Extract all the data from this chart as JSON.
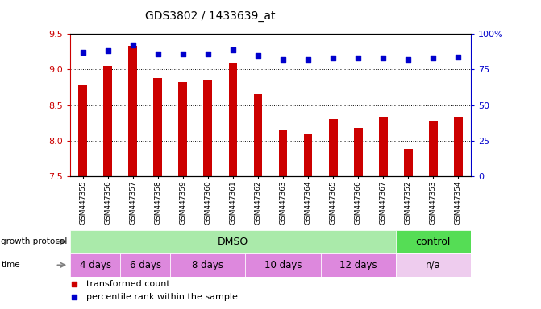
{
  "title": "GDS3802 / 1433639_at",
  "samples": [
    "GSM447355",
    "GSM447356",
    "GSM447357",
    "GSM447358",
    "GSM447359",
    "GSM447360",
    "GSM447361",
    "GSM447362",
    "GSM447363",
    "GSM447364",
    "GSM447365",
    "GSM447366",
    "GSM447367",
    "GSM447352",
    "GSM447353",
    "GSM447354"
  ],
  "transformed_counts": [
    8.78,
    9.05,
    9.33,
    8.88,
    8.82,
    8.85,
    9.1,
    8.65,
    8.15,
    8.1,
    8.3,
    8.18,
    8.33,
    7.88,
    8.28,
    8.33
  ],
  "percentile_ranks": [
    87,
    88,
    92,
    86,
    86,
    86,
    89,
    85,
    82,
    82,
    83,
    83,
    83,
    82,
    83,
    84
  ],
  "bar_color": "#cc0000",
  "dot_color": "#0000cc",
  "ylim_left": [
    7.5,
    9.5
  ],
  "ylim_right": [
    0,
    100
  ],
  "yticks_left": [
    7.5,
    8.0,
    8.5,
    9.0,
    9.5
  ],
  "yticks_right": [
    0,
    25,
    50,
    75,
    100
  ],
  "ytick_labels_right": [
    "0",
    "25",
    "50",
    "75",
    "100%"
  ],
  "grid_values": [
    8.0,
    8.5,
    9.0,
    9.5
  ],
  "background_color": "#ffffff",
  "title_color": "#000000",
  "tick_color_left": "#cc0000",
  "tick_color_right": "#0000cc",
  "growth_protocol_label": "growth protocol",
  "time_label": "time",
  "dmso_label": "DMSO",
  "control_label": "control",
  "time_groups": [
    {
      "label": "4 days",
      "start": 0,
      "end": 2
    },
    {
      "label": "6 days",
      "start": 2,
      "end": 4
    },
    {
      "label": "8 days",
      "start": 4,
      "end": 7
    },
    {
      "label": "10 days",
      "start": 7,
      "end": 10
    },
    {
      "label": "12 days",
      "start": 10,
      "end": 13
    },
    {
      "label": "n/a",
      "start": 13,
      "end": 16
    }
  ],
  "dmso_range": [
    0,
    13
  ],
  "control_range": [
    13,
    16
  ],
  "growth_protocol_color": "#aaeaaa",
  "control_color": "#55dd55",
  "time_color": "#dd88dd",
  "time_na_color": "#eeccee",
  "legend_items": [
    {
      "label": "transformed count",
      "color": "#cc0000",
      "marker": "s"
    },
    {
      "label": "percentile rank within the sample",
      "color": "#0000cc",
      "marker": "s"
    }
  ]
}
